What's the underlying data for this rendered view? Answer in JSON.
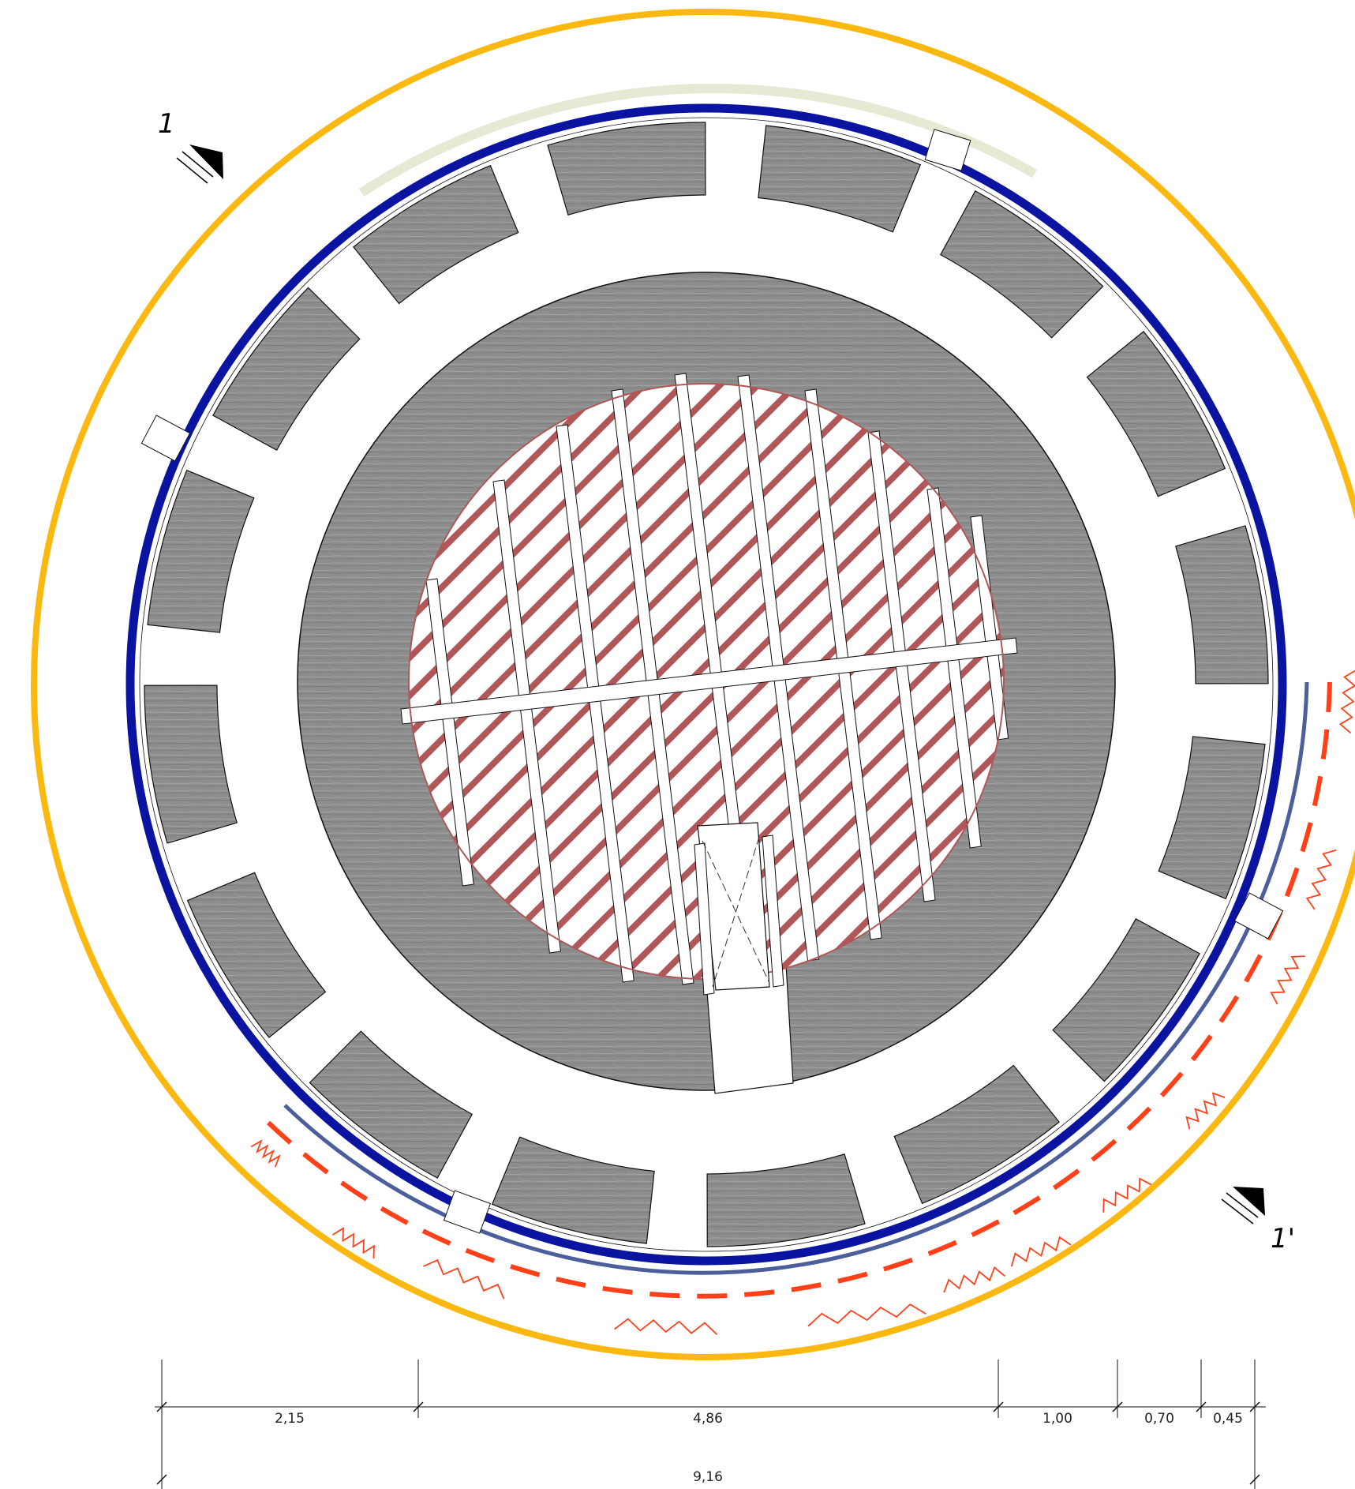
{
  "section_marks": {
    "start": "1",
    "end": "1'"
  },
  "dimensions": {
    "segments": [
      "2,15",
      "4,86",
      "1,00",
      "0,70",
      "0,45"
    ],
    "total": "9,16"
  },
  "colors": {
    "outer_ring": "#FBB811",
    "blue_ring": "#0A14A0",
    "pale_arc": "#E4EAD3",
    "slate_arc": "#4C5E9C",
    "red_marks": "#FF4018",
    "hatch": "#B0575A",
    "stone": "#909090",
    "stone_dark": "#757575",
    "line": "#111111"
  }
}
